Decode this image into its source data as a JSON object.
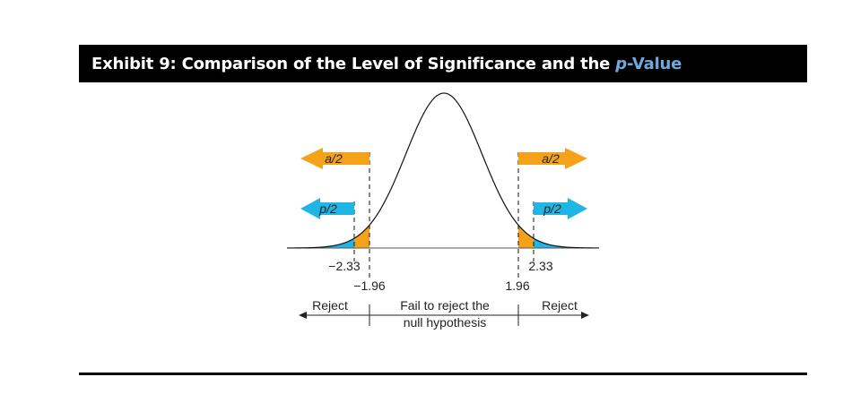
{
  "title": {
    "prefix": "Exhibit 9: Comparison of the Level of Significance and the ",
    "accent_italic": "p",
    "accent_rest": "-Value"
  },
  "labels": {
    "alpha_left": "a/2",
    "alpha_right": "a/2",
    "p_left": "p/2",
    "p_right": "p/2",
    "tick_neg_233": "−2.33",
    "tick_neg_196": "−1.96",
    "tick_pos_196": "1.96",
    "tick_pos_233": "2.33",
    "reject_left": "Reject",
    "reject_right": "Reject",
    "fail_line1": "Fail to reject the",
    "fail_line2": "null hypothesis"
  },
  "colors": {
    "alpha": "#f5a21b",
    "p": "#1fb6e6",
    "accent": "#6fa8dc"
  }
}
